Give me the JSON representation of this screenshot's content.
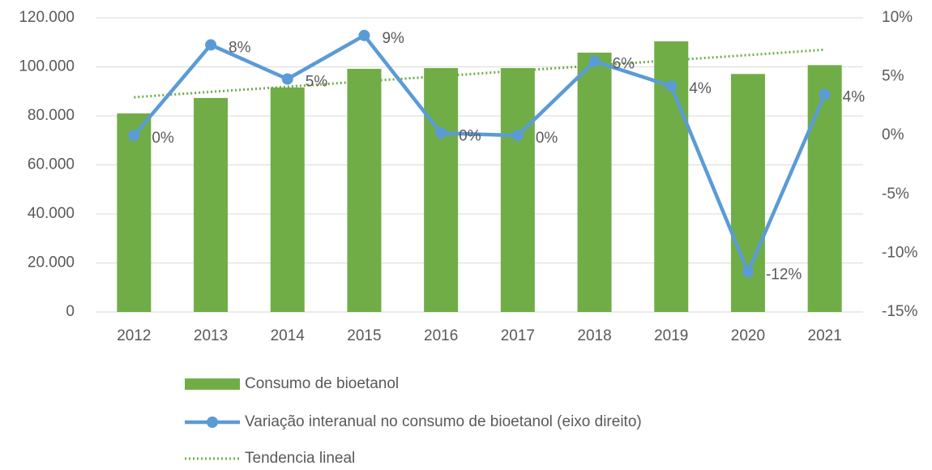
{
  "chart_data": {
    "type": "bar_line",
    "categories": [
      "2012",
      "2013",
      "2014",
      "2015",
      "2016",
      "2017",
      "2018",
      "2019",
      "2020",
      "2021"
    ],
    "series": [
      {
        "name": "Consumo de bioetanol",
        "type": "bar",
        "color": "#70ad47",
        "values": [
          81000,
          87300,
          91600,
          99200,
          99500,
          99500,
          105800,
          110400,
          97100,
          100700
        ]
      },
      {
        "name": "Variação interanual no consumo de bioetanol (eixo direito)",
        "type": "line",
        "axis": "y2",
        "color": "#5b9bd5",
        "values": [
          0,
          7.7,
          4.8,
          8.5,
          0.2,
          0,
          6.3,
          4.2,
          -11.6,
          3.5
        ],
        "value_labels": [
          "0%",
          "8%",
          "5%",
          "9%",
          "0%",
          "0%",
          "6%",
          "4%",
          "-12%",
          "4%"
        ]
      },
      {
        "name": "Tendencia lineal",
        "type": "trend",
        "color": "#70ad47",
        "values": [
          87600,
          89800,
          91900,
          94100,
          96200,
          98400,
          100500,
          102700,
          104800,
          107000
        ]
      }
    ],
    "ylim": [
      0,
      120000
    ],
    "yticks": [
      0,
      {
        "value": 20000,
        "label": "20.000"
      },
      {
        "value": 40000,
        "label": "40.000"
      },
      {
        "value": 60000,
        "label": "60.000"
      },
      {
        "value": 80000,
        "label": "80.000"
      },
      {
        "value": 100000,
        "label": "100.000"
      },
      {
        "value": 120000,
        "label": "120.000"
      }
    ],
    "y2lim": [
      -15,
      10
    ],
    "y2ticks": [
      {
        "value": -15,
        "label": "-15%"
      },
      {
        "value": -10,
        "label": "-10%"
      },
      {
        "value": -5,
        "label": "-5%"
      },
      {
        "value": 0,
        "label": "0%"
      },
      {
        "value": 5,
        "label": "5%"
      },
      {
        "value": 10,
        "label": "10%"
      }
    ],
    "grid": true,
    "legend": "bottom"
  }
}
